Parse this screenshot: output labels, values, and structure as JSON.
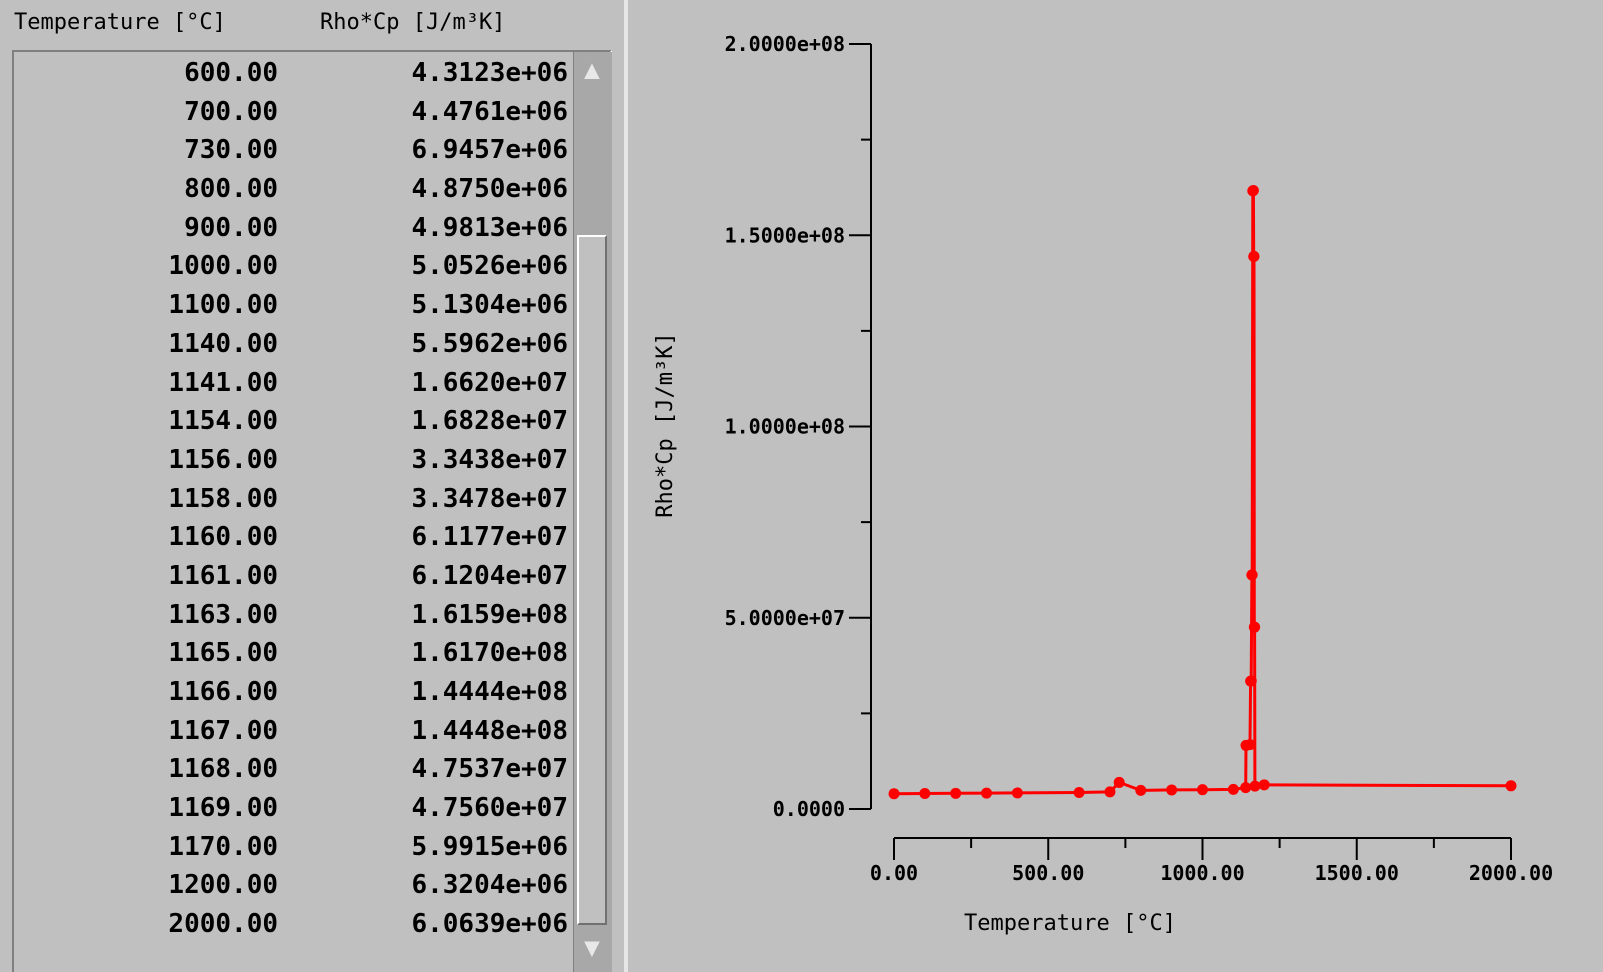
{
  "table": {
    "headers": {
      "temperature": "Temperature [°C]",
      "rho_cp": "Rho*Cp [J/m³K]"
    },
    "rows": [
      {
        "t": "600.00",
        "v": "4.3123e+06"
      },
      {
        "t": "700.00",
        "v": "4.4761e+06"
      },
      {
        "t": "730.00",
        "v": "6.9457e+06"
      },
      {
        "t": "800.00",
        "v": "4.8750e+06"
      },
      {
        "t": "900.00",
        "v": "4.9813e+06"
      },
      {
        "t": "1000.00",
        "v": "5.0526e+06"
      },
      {
        "t": "1100.00",
        "v": "5.1304e+06"
      },
      {
        "t": "1140.00",
        "v": "5.5962e+06"
      },
      {
        "t": "1141.00",
        "v": "1.6620e+07"
      },
      {
        "t": "1154.00",
        "v": "1.6828e+07"
      },
      {
        "t": "1156.00",
        "v": "3.3438e+07"
      },
      {
        "t": "1158.00",
        "v": "3.3478e+07"
      },
      {
        "t": "1160.00",
        "v": "6.1177e+07"
      },
      {
        "t": "1161.00",
        "v": "6.1204e+07"
      },
      {
        "t": "1163.00",
        "v": "1.6159e+08"
      },
      {
        "t": "1165.00",
        "v": "1.6170e+08"
      },
      {
        "t": "1166.00",
        "v": "1.4444e+08"
      },
      {
        "t": "1167.00",
        "v": "1.4448e+08"
      },
      {
        "t": "1168.00",
        "v": "4.7537e+07"
      },
      {
        "t": "1169.00",
        "v": "4.7560e+07"
      },
      {
        "t": "1170.00",
        "v": "5.9915e+06"
      },
      {
        "t": "1200.00",
        "v": "6.3204e+06"
      },
      {
        "t": "2000.00",
        "v": "6.0639e+06"
      }
    ]
  },
  "icons": {
    "scroll_up": "scroll-up-arrow-icon",
    "scroll_down": "scroll-down-arrow-icon"
  },
  "colors": {
    "series": "#ff0000",
    "background": "#c0c0c0"
  },
  "chart_data": {
    "type": "line",
    "xlabel": "Temperature [°C]",
    "ylabel": "Rho*Cp [J/m³K]",
    "xlim": [
      0,
      2000
    ],
    "ylim": [
      0,
      200000000
    ],
    "x_ticks": [
      0,
      500,
      1000,
      1500,
      2000
    ],
    "x_tick_labels": [
      "0.00",
      "500.00",
      "1000.00",
      "1500.00",
      "2000.00"
    ],
    "y_ticks": [
      0,
      50000000,
      100000000,
      150000000,
      200000000
    ],
    "y_tick_labels": [
      "0.0000",
      "5.0000e+07",
      "1.0000e+08",
      "1.5000e+08",
      "2.0000e+08"
    ],
    "grid": false,
    "series": [
      {
        "x": [
          0,
          100,
          200,
          300,
          400,
          600,
          700,
          730,
          800,
          900,
          1000,
          1100,
          1140,
          1141,
          1154,
          1156,
          1158,
          1160,
          1161,
          1163,
          1165,
          1166,
          1167,
          1168,
          1169,
          1170,
          1200,
          2000
        ],
        "y": [
          4000000,
          4050000,
          4100000,
          4150000,
          4200000,
          4312300,
          4476100,
          6945700,
          4875000,
          4981300,
          5052600,
          5130400,
          5596200,
          16620000,
          16828000,
          33438000,
          33478000,
          61177000,
          61204000,
          161590000,
          161700000,
          144440000,
          144480000,
          47537000,
          47560000,
          5991500,
          6320400,
          6063900
        ]
      }
    ]
  }
}
